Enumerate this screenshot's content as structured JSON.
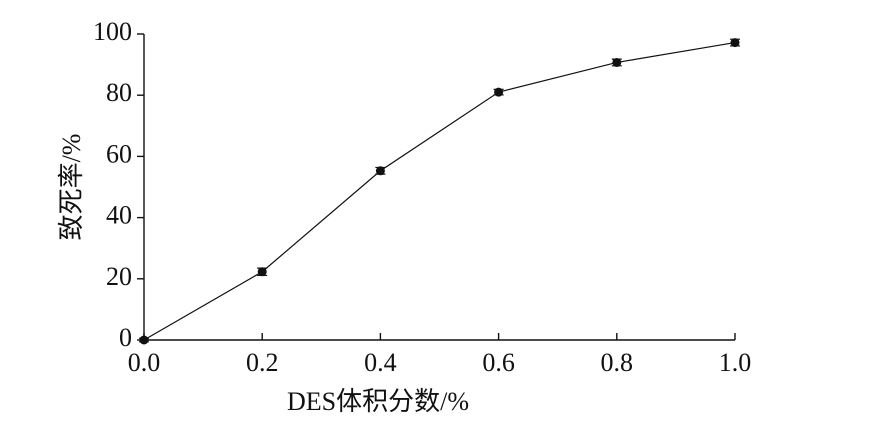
{
  "chart_data": {
    "type": "line",
    "xlabel": "DES体积分数/%",
    "ylabel": "致死率/%",
    "x": [
      0,
      0.2,
      0.4,
      0.6,
      0.8,
      1.0
    ],
    "series": [
      {
        "color": "#111111",
        "values": [
          0,
          22.3,
          55.3,
          81,
          90.7,
          97.2
        ],
        "errors": [
          0.6,
          1.2,
          1.1,
          0.9,
          1.1,
          1.1
        ]
      }
    ],
    "xlim": [
      0,
      1
    ],
    "ylim": [
      0,
      100
    ],
    "xticks": [
      {
        "value": 0,
        "label": "0.0"
      },
      0.2,
      0.4,
      0.6,
      0.8,
      {
        "value": 1,
        "label": "1.0"
      }
    ],
    "yticks": [
      0,
      20,
      40,
      60,
      80,
      100
    ]
  }
}
